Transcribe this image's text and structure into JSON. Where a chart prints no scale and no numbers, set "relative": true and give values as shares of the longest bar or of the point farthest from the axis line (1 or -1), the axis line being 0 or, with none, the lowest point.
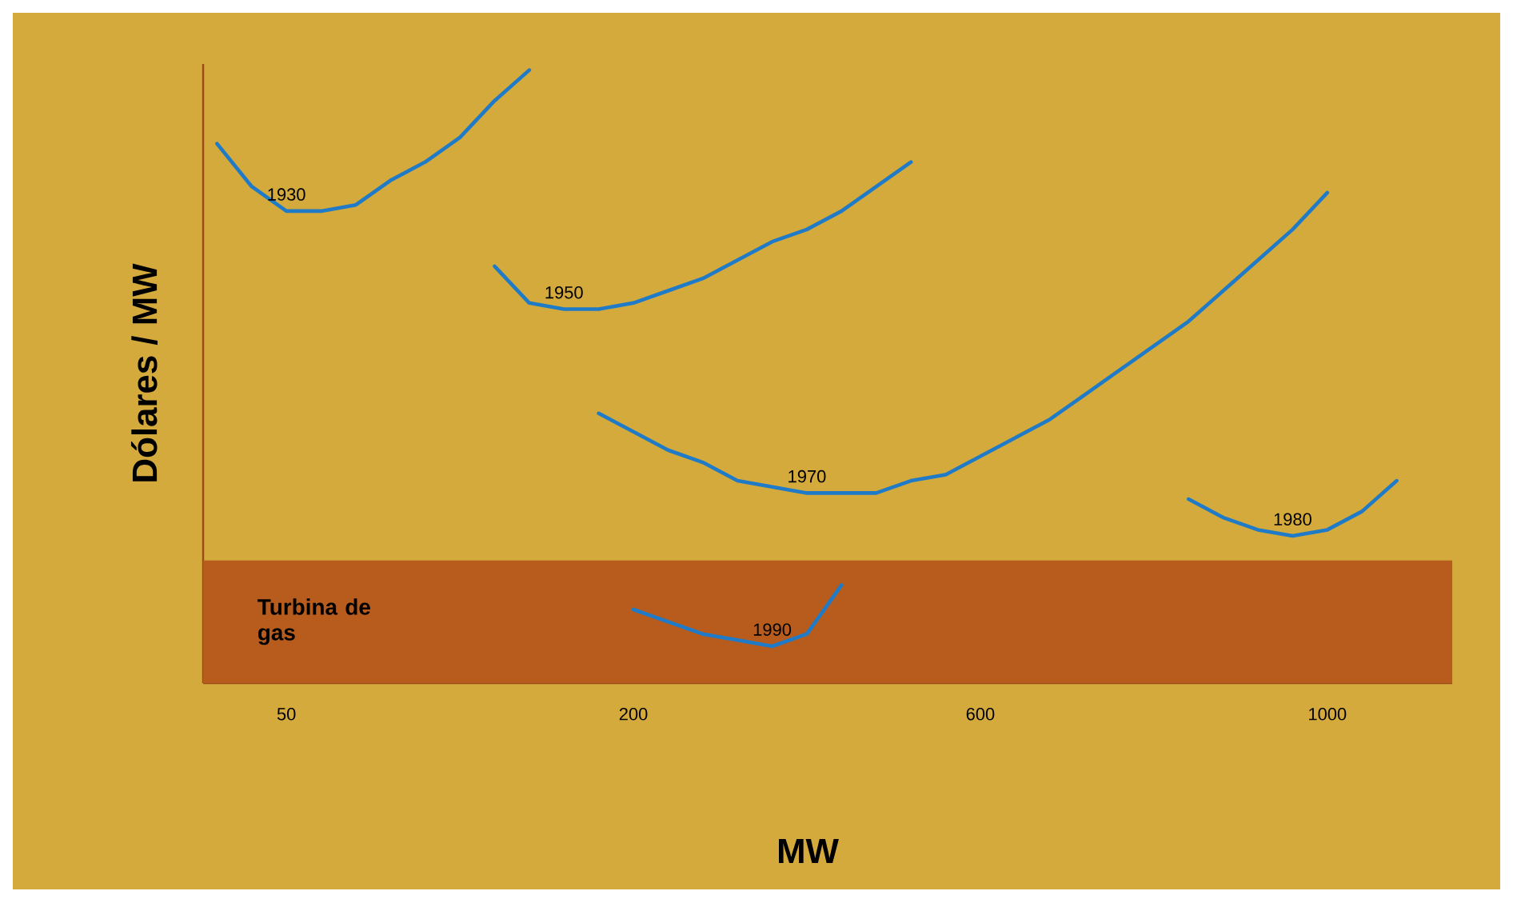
{
  "chart_data": {
    "type": "line",
    "relative": true,
    "xlabel": "MW",
    "ylabel": "Dólares / MW",
    "categories": [
      null,
      null,
      "50",
      null,
      null,
      null,
      null,
      null,
      null,
      null,
      null,
      null,
      "200",
      null,
      null,
      null,
      null,
      null,
      null,
      null,
      null,
      null,
      "600",
      null,
      null,
      null,
      null,
      null,
      null,
      null,
      null,
      null,
      "1000",
      null,
      null,
      null
    ],
    "bands": [
      {
        "axis": "y",
        "from": 0,
        "to": 0.2,
        "label": "Turbina de gas",
        "color": "#b85c1e"
      }
    ],
    "series": [
      {
        "name": "1930",
        "color": "#1f7bc7",
        "values": [
          0.88,
          0.81,
          0.77,
          0.77,
          0.78,
          0.82,
          0.85,
          0.89,
          0.95,
          1.0,
          null,
          null,
          null,
          null,
          null,
          null,
          null,
          null,
          null,
          null,
          null,
          null,
          null,
          null,
          null,
          null,
          null,
          null,
          null,
          null,
          null,
          null,
          null,
          null,
          null,
          null
        ]
      },
      {
        "name": "1950",
        "color": "#1f7bc7",
        "values": [
          null,
          null,
          null,
          null,
          null,
          null,
          null,
          null,
          0.68,
          0.62,
          0.61,
          0.61,
          0.62,
          0.64,
          0.66,
          0.69,
          0.72,
          0.74,
          0.77,
          0.81,
          0.85,
          null,
          null,
          null,
          null,
          null,
          null,
          null,
          null,
          null,
          null,
          null,
          null,
          null,
          null,
          null
        ]
      },
      {
        "name": "1970",
        "color": "#1f7bc7",
        "values": [
          null,
          null,
          null,
          null,
          null,
          null,
          null,
          null,
          null,
          null,
          null,
          0.44,
          0.41,
          0.38,
          0.36,
          0.33,
          0.32,
          0.31,
          0.31,
          0.31,
          0.33,
          0.34,
          0.37,
          0.4,
          0.43,
          0.47,
          0.51,
          0.55,
          0.59,
          0.64,
          0.69,
          0.74,
          0.8,
          null,
          null,
          null
        ]
      },
      {
        "name": "1980",
        "color": "#1f7bc7",
        "values": [
          null,
          null,
          null,
          null,
          null,
          null,
          null,
          null,
          null,
          null,
          null,
          null,
          null,
          null,
          null,
          null,
          null,
          null,
          null,
          null,
          null,
          null,
          null,
          null,
          null,
          null,
          null,
          null,
          0.3,
          0.27,
          0.25,
          0.24,
          0.25,
          0.28,
          0.33,
          null
        ]
      },
      {
        "name": "1990",
        "color": "#1f7bc7",
        "values": [
          null,
          null,
          null,
          null,
          null,
          null,
          null,
          null,
          null,
          null,
          null,
          null,
          0.12,
          0.1,
          0.08,
          0.07,
          0.06,
          0.08,
          0.16,
          null,
          null,
          null,
          null,
          null,
          null,
          null,
          null,
          null,
          null,
          null,
          null,
          null,
          null,
          null,
          null,
          null
        ]
      }
    ]
  }
}
